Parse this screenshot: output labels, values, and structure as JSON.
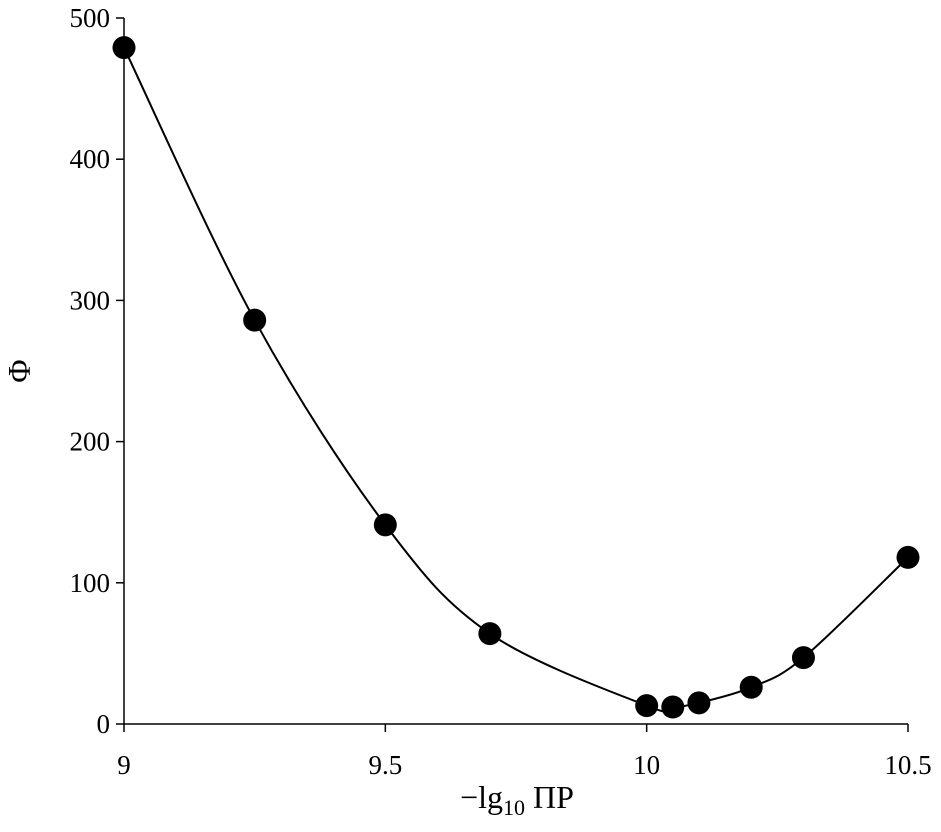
{
  "chart_data": {
    "type": "scatter",
    "xlabel_parts": {
      "prefix": "−lg",
      "subscript": "10",
      "suffix": " ΠP"
    },
    "ylabel": "Φ",
    "xlim": [
      9,
      10.5
    ],
    "ylim": [
      0,
      500
    ],
    "x_ticks": [
      9,
      9.5,
      10,
      10.5
    ],
    "x_tick_labels": [
      "9",
      "9.5",
      "10",
      "10.5"
    ],
    "y_ticks": [
      0,
      100,
      200,
      300,
      400,
      500
    ],
    "y_tick_labels": [
      "0",
      "100",
      "200",
      "300",
      "400",
      "500"
    ],
    "grid": false,
    "legend": false,
    "series": [
      {
        "type": "scatter",
        "x": [
          9.0,
          9.25,
          9.5,
          9.7,
          10.0,
          10.05,
          10.1,
          10.2,
          10.3,
          10.5
        ],
        "y": [
          479,
          286,
          141,
          64,
          13,
          12,
          15,
          26,
          47,
          118
        ],
        "color": "#000000"
      },
      {
        "type": "line",
        "x": [
          9.0,
          9.25,
          9.5,
          9.7,
          10.0,
          10.05,
          10.1,
          10.2,
          10.3,
          10.5
        ],
        "y": [
          479,
          286,
          141,
          64,
          13,
          12,
          15,
          26,
          47,
          118
        ],
        "smooth": true,
        "color": "#000000"
      }
    ]
  }
}
